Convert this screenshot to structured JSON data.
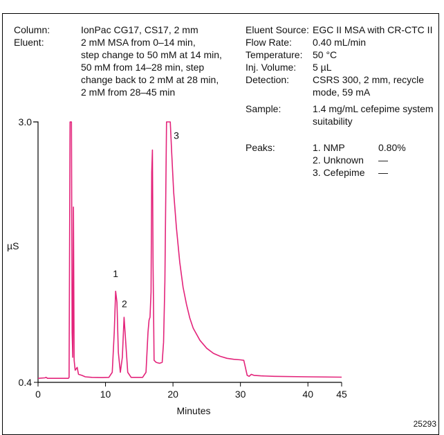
{
  "conditions_left": [
    {
      "label": "Column:",
      "value_lines": [
        "IonPac CG17, CS17, 2 mm"
      ]
    },
    {
      "label": "Eluent:",
      "value_lines": [
        "2 mM MSA from 0–14 min,",
        "step change to 50 mM at 14 min,",
        "50 mM from 14–28 min, step",
        "change back to 2 mM at 28 min,",
        "2 mM from 28–45 min"
      ]
    }
  ],
  "conditions_right": [
    {
      "label": "Eluent Source:",
      "value_lines": [
        "EGC II MSA with CR-CTC II"
      ]
    },
    {
      "label": "Flow Rate:",
      "value_lines": [
        "0.40 mL/min"
      ]
    },
    {
      "label": "Temperature:",
      "value_lines": [
        "50 °C"
      ]
    },
    {
      "label": "Inj. Volume:",
      "value_lines": [
        "5 µL"
      ]
    },
    {
      "label": "Detection:",
      "value_lines": [
        "CSRS 300, 2 mm, recycle",
        "mode, 59 mA"
      ]
    },
    {
      "label": "Sample:",
      "value_lines": [
        "1.4 mg/mL cefepime system",
        "suitability"
      ]
    }
  ],
  "peaks_label": "Peaks:",
  "peaks_table": [
    {
      "name": "1. NMP",
      "value": "0.80%"
    },
    {
      "name": "2. Unknown",
      "value": "—"
    },
    {
      "name": "3. Cefepime",
      "value": "—"
    }
  ],
  "figure_id": "25293",
  "chart_data": {
    "type": "line",
    "xlabel": "Minutes",
    "ylabel": "µS",
    "xlim": [
      0,
      45
    ],
    "ylim": [
      0.4,
      3.0
    ],
    "x_ticks": [
      0,
      10,
      20,
      30,
      40,
      45
    ],
    "y_tick_labels": [
      "3.0",
      "0.4"
    ],
    "y_ticks": [
      3.0,
      0.4
    ],
    "grid": false,
    "peak_labels": [
      {
        "label": "1",
        "x": 11.5,
        "y": 1.45
      },
      {
        "label": "2",
        "x": 12.8,
        "y": 1.15
      },
      {
        "label": "3",
        "x": 20.5,
        "y": 2.83
      }
    ],
    "series": [
      {
        "color": "#e3237a",
        "points": [
          [
            0,
            0.44
          ],
          [
            1.0,
            0.445
          ],
          [
            1.2,
            0.45
          ],
          [
            1.4,
            0.44
          ],
          [
            3.0,
            0.44
          ],
          [
            4.2,
            0.44
          ],
          [
            4.5,
            0.44
          ],
          [
            4.6,
            0.45
          ],
          [
            4.75,
            3.0
          ],
          [
            4.8,
            3.0
          ],
          [
            4.95,
            3.0
          ],
          [
            5.05,
            0.9
          ],
          [
            5.15,
            0.65
          ],
          [
            5.25,
            2.15
          ],
          [
            5.35,
            0.62
          ],
          [
            5.5,
            0.52
          ],
          [
            5.8,
            0.55
          ],
          [
            6.0,
            0.48
          ],
          [
            6.5,
            0.47
          ],
          [
            7.0,
            0.455
          ],
          [
            8.0,
            0.45
          ],
          [
            9.5,
            0.448
          ],
          [
            10.5,
            0.45
          ],
          [
            11.0,
            0.5
          ],
          [
            11.3,
            0.9
          ],
          [
            11.5,
            1.31
          ],
          [
            11.7,
            1.2
          ],
          [
            11.9,
            0.7
          ],
          [
            12.2,
            0.5
          ],
          [
            12.5,
            0.65
          ],
          [
            12.75,
            1.05
          ],
          [
            13.0,
            0.8
          ],
          [
            13.3,
            0.5
          ],
          [
            13.8,
            0.45
          ],
          [
            15.5,
            0.45
          ],
          [
            16.0,
            0.5
          ],
          [
            16.3,
            0.9
          ],
          [
            16.45,
            1.02
          ],
          [
            16.6,
            1.05
          ],
          [
            16.75,
            1.3
          ],
          [
            16.85,
            2.5
          ],
          [
            16.95,
            2.72
          ],
          [
            17.05,
            1.6
          ],
          [
            17.2,
            0.62
          ],
          [
            17.5,
            0.6
          ],
          [
            18.0,
            0.59
          ],
          [
            18.4,
            0.6
          ],
          [
            18.6,
            0.8
          ],
          [
            18.8,
            1.4
          ],
          [
            18.95,
            2.4
          ],
          [
            19.05,
            3.0
          ],
          [
            19.6,
            3.0
          ],
          [
            19.8,
            2.7
          ],
          [
            20.1,
            2.3
          ],
          [
            20.5,
            1.95
          ],
          [
            21.0,
            1.6
          ],
          [
            21.5,
            1.35
          ],
          [
            22.0,
            1.18
          ],
          [
            22.5,
            1.04
          ],
          [
            23.0,
            0.94
          ],
          [
            24.0,
            0.82
          ],
          [
            25.0,
            0.74
          ],
          [
            26.0,
            0.69
          ],
          [
            27.0,
            0.66
          ],
          [
            28.0,
            0.64
          ],
          [
            29.0,
            0.63
          ],
          [
            30.0,
            0.625
          ],
          [
            30.5,
            0.62
          ],
          [
            30.7,
            0.56
          ],
          [
            31.0,
            0.47
          ],
          [
            31.3,
            0.46
          ],
          [
            31.6,
            0.48
          ],
          [
            32.0,
            0.47
          ],
          [
            33.0,
            0.465
          ],
          [
            35.0,
            0.46
          ],
          [
            40.0,
            0.455
          ],
          [
            45,
            0.452
          ]
        ]
      }
    ]
  }
}
